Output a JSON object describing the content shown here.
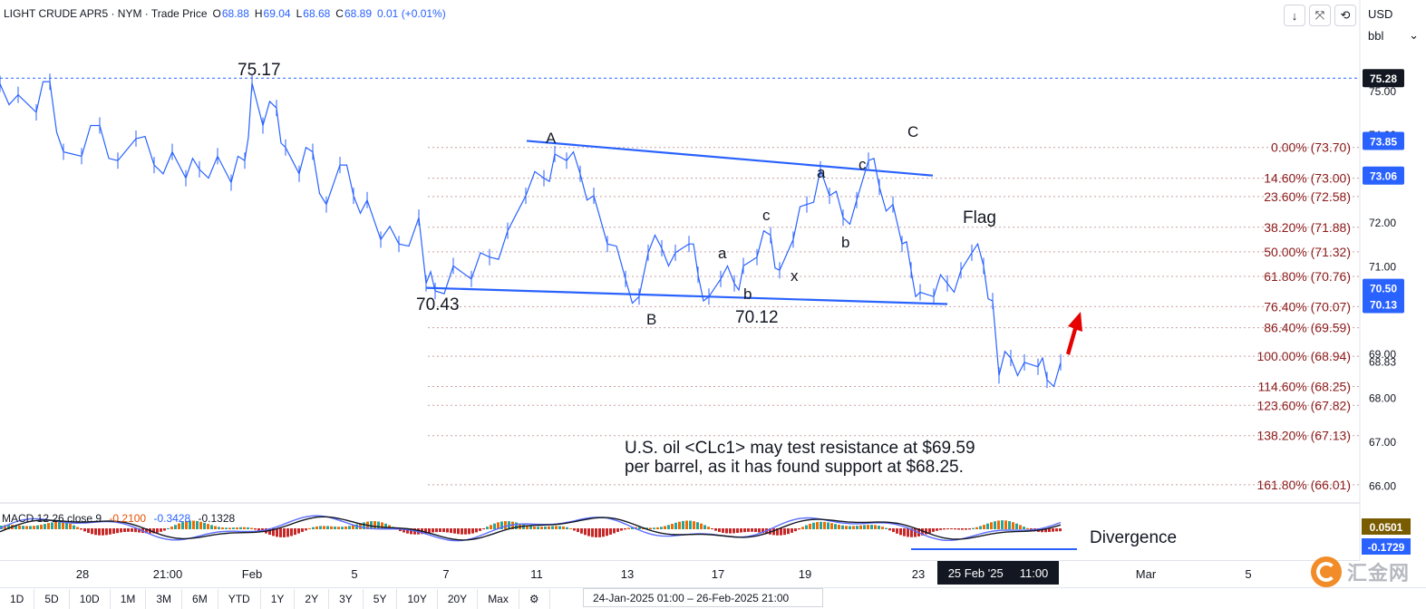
{
  "header": {
    "symbol": "LIGHT CRUDE APR5 · NYM · Trade Price",
    "open_label": "O",
    "open": "68.88",
    "high_label": "H",
    "high": "69.04",
    "low_label": "L",
    "low": "68.68",
    "close_label": "C",
    "close": "68.89",
    "change": "0.01 (+0.01%)"
  },
  "toolbar": {
    "buttons": [
      {
        "icon": "down-arrow-icon",
        "glyph": "↓"
      },
      {
        "icon": "collapse-icon",
        "glyph": "⤧"
      },
      {
        "icon": "restore-icon",
        "glyph": "⟲"
      }
    ]
  },
  "currency": "USD",
  "unit": "bbl",
  "annotations": {
    "hi_label": "75.17",
    "low1": "70.43",
    "low2": "70.12",
    "wave_A": "A",
    "wave_B": "B",
    "wave_C": "C",
    "sub_a1": "a",
    "sub_b1": "b",
    "sub_c1": "c",
    "sub_x": "x",
    "sub_a2": "a",
    "sub_b2": "b",
    "sub_c2": "c",
    "flag": "Flag",
    "divergence": "Divergence",
    "note_line1": "U.S. oil <CLc1> may test resistance at $69.59",
    "note_line2": "per barrel, as it has found support at $68.25."
  },
  "chart_data": {
    "type": "line",
    "title": "LIGHT CRUDE APR5 · NYM · Trade Price",
    "xlabel": "",
    "ylabel": "",
    "ylim": [
      65.7,
      76.8
    ],
    "x_ticks": [
      "28",
      "21:00",
      "Feb",
      "5",
      "7",
      "11",
      "13",
      "17",
      "19",
      "23",
      "Mar",
      "5"
    ],
    "y_ticks": [
      "75.00",
      "74.00",
      "72.00",
      "71.00",
      "69.00",
      "68.00",
      "67.00",
      "66.00"
    ],
    "current_price": "68.83",
    "price_labels": [
      {
        "value": "75.28",
        "color": "#131722"
      },
      {
        "value": "73.85",
        "color": "#2962ff"
      },
      {
        "value": "73.06",
        "color": "#2962ff"
      },
      {
        "value": "70.50",
        "color": "#2962ff"
      },
      {
        "value": "70.13",
        "color": "#2962ff"
      }
    ],
    "fib_levels": [
      {
        "label": "0.00% (73.70)",
        "price": 73.7
      },
      {
        "label": "14.60% (73.00)",
        "price": 73.0
      },
      {
        "label": "23.60% (72.58)",
        "price": 72.58
      },
      {
        "label": "38.20% (71.88)",
        "price": 71.88
      },
      {
        "label": "50.00% (71.32)",
        "price": 71.32
      },
      {
        "label": "61.80% (70.76)",
        "price": 70.76
      },
      {
        "label": "76.40% (70.07)",
        "price": 70.07
      },
      {
        "label": "86.40% (69.59)",
        "price": 69.59
      },
      {
        "label": "100.00% (68.94)",
        "price": 68.94
      },
      {
        "label": "114.60% (68.25)",
        "price": 68.25
      },
      {
        "label": "123.60% (67.82)",
        "price": 67.82
      },
      {
        "label": "138.20% (67.13)",
        "price": 67.13
      },
      {
        "label": "161.80% (66.01)",
        "price": 66.01
      }
    ],
    "series": [
      {
        "name": "LIGHT CRUDE APR5",
        "color": "#2962ff",
        "points": [
          [
            0,
            75.15
          ],
          [
            20,
            74.9
          ],
          [
            40,
            74.5
          ],
          [
            55,
            75.2
          ],
          [
            70,
            73.6
          ],
          [
            90,
            73.5
          ],
          [
            110,
            74.2
          ],
          [
            130,
            73.4
          ],
          [
            150,
            73.9
          ],
          [
            170,
            73.3
          ],
          [
            190,
            73.6
          ],
          [
            205,
            73.0
          ],
          [
            220,
            73.2
          ],
          [
            240,
            73.5
          ],
          [
            255,
            72.9
          ],
          [
            270,
            73.4
          ],
          [
            278,
            75.17
          ],
          [
            290,
            74.2
          ],
          [
            305,
            74.6
          ],
          [
            315,
            73.7
          ],
          [
            330,
            73.1
          ],
          [
            345,
            73.6
          ],
          [
            360,
            72.4
          ],
          [
            375,
            73.3
          ],
          [
            390,
            72.6
          ],
          [
            405,
            72.5
          ],
          [
            420,
            71.6
          ],
          [
            440,
            71.5
          ],
          [
            462,
            72.1
          ],
          [
            470,
            70.6
          ],
          [
            480,
            70.43
          ],
          [
            500,
            71.0
          ],
          [
            520,
            70.7
          ],
          [
            540,
            71.2
          ],
          [
            560,
            71.8
          ],
          [
            580,
            72.6
          ],
          [
            600,
            73.0
          ],
          [
            612,
            73.55
          ],
          [
            625,
            73.4
          ],
          [
            640,
            73.1
          ],
          [
            655,
            72.6
          ],
          [
            670,
            71.5
          ],
          [
            690,
            70.7
          ],
          [
            705,
            70.3
          ],
          [
            715,
            71.3
          ],
          [
            730,
            71.4
          ],
          [
            745,
            71.3
          ],
          [
            760,
            71.5
          ],
          [
            770,
            70.8
          ],
          [
            782,
            70.3
          ],
          [
            795,
            70.7
          ],
          [
            810,
            70.6
          ],
          [
            820,
            71.0
          ],
          [
            835,
            71.2
          ],
          [
            850,
            71.7
          ],
          [
            860,
            70.9
          ],
          [
            875,
            71.6
          ],
          [
            890,
            72.4
          ],
          [
            905,
            73.2
          ],
          [
            915,
            72.6
          ],
          [
            930,
            72.1
          ],
          [
            945,
            72.5
          ],
          [
            958,
            73.4
          ],
          [
            970,
            72.8
          ],
          [
            985,
            72.4
          ],
          [
            995,
            71.5
          ],
          [
            1005,
            70.9
          ],
          [
            1015,
            70.4
          ],
          [
            1030,
            70.3
          ],
          [
            1045,
            70.6
          ],
          [
            1060,
            70.9
          ],
          [
            1072,
            71.3
          ],
          [
            1085,
            71.0
          ],
          [
            1095,
            70.2
          ],
          [
            1102,
            68.5
          ],
          [
            1115,
            68.9
          ],
          [
            1130,
            68.8
          ],
          [
            1145,
            68.7
          ],
          [
            1155,
            68.4
          ],
          [
            1170,
            68.8
          ]
        ]
      }
    ],
    "macd": {
      "legend": "MACD 12 26 close 9",
      "histogram": "-0.2100",
      "macd_value": "-0.3428",
      "signal": "-0.1328",
      "axis_labels": [
        "0.0501",
        "-0.1729"
      ]
    }
  },
  "timebar": {
    "labels": [
      "28",
      "21:00",
      "Feb",
      "5",
      "7",
      "11",
      "13",
      "17",
      "19",
      "23",
      "Mar",
      "5"
    ],
    "cursor_date": "25 Feb '25",
    "cursor_time": "11:00"
  },
  "ranges": [
    "1D",
    "5D",
    "10D",
    "1M",
    "3M",
    "6M",
    "YTD",
    "1Y",
    "2Y",
    "3Y",
    "5Y",
    "10Y",
    "20Y",
    "Max"
  ],
  "date_range": "24-Jan-2025 01:00 ‒ 26-Feb-2025 21:00",
  "watermark": "汇金网"
}
